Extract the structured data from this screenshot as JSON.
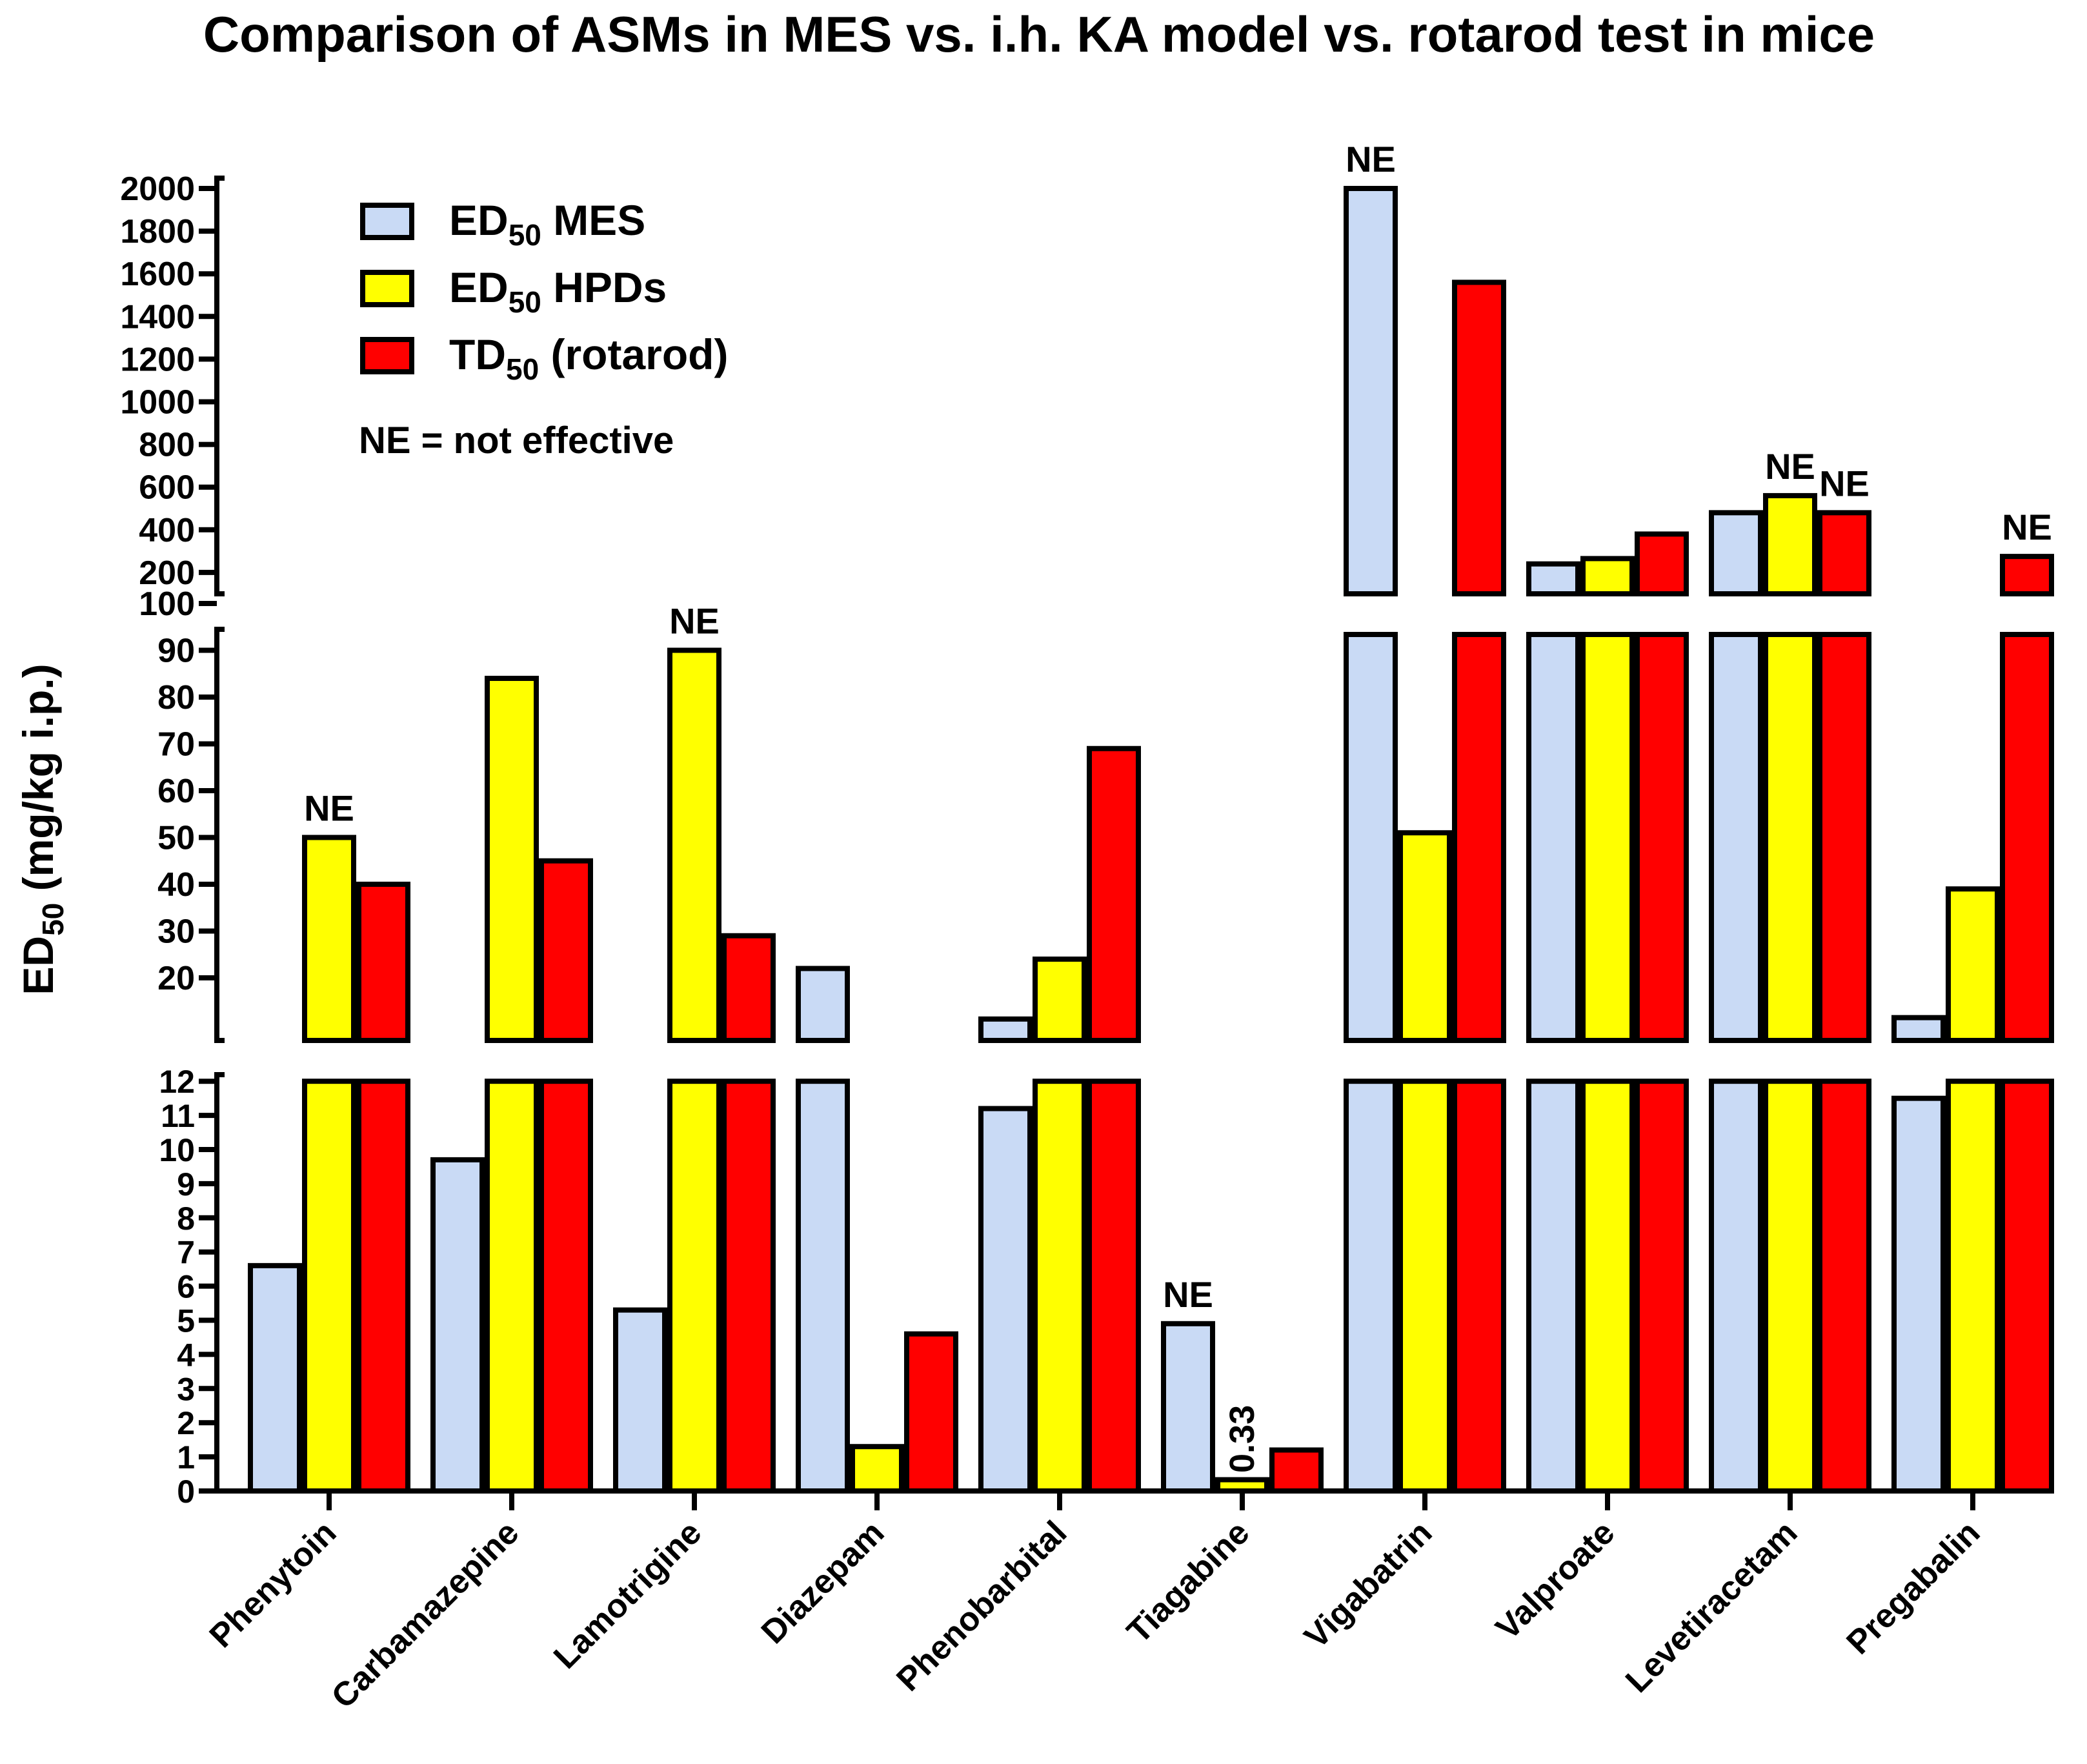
{
  "chart_data": {
    "type": "bar",
    "title": "Comparison of ASMs in MES vs. i.h. KA model vs. rotarod test in mice",
    "ylabel": {
      "base": "ED",
      "sub": "50",
      "rest": " (mg/kg i.p.)"
    },
    "categories": [
      "Phenytoin",
      "Carbamazepine",
      "Lamotrigine",
      "Diazepam",
      "Phenobarbital",
      "Tiagabine",
      "Vigabatrin",
      "Valproate",
      "Levetiracetam",
      "Pregabalin"
    ],
    "series": [
      {
        "name": "ED50 MES",
        "label": {
          "base": "ED",
          "sub": "50",
          "rest": " MES"
        },
        "color": "#c9daf5",
        "values": [
          6.6,
          9.7,
          5.3,
          22,
          11.2,
          4.9,
          2000,
          240,
          480,
          11.5
        ],
        "not_effective": [
          false,
          false,
          false,
          false,
          false,
          true,
          true,
          false,
          false,
          false
        ]
      },
      {
        "name": "ED50 HPDs",
        "label": {
          "base": "ED",
          "sub": "50",
          "rest": " HPDs"
        },
        "color": "#ffff00",
        "values": [
          50,
          84,
          90,
          1.3,
          24,
          0.33,
          51,
          265,
          560,
          39
        ],
        "not_effective": [
          true,
          false,
          true,
          false,
          false,
          false,
          false,
          false,
          true,
          false
        ]
      },
      {
        "name": "TD50 (rotarod)",
        "label": {
          "base": "TD",
          "sub": "50",
          "rest": " (rotarod)"
        },
        "color": "#ff0000",
        "values": [
          40,
          45,
          29,
          4.6,
          69,
          1.2,
          1560,
          380,
          480,
          275
        ],
        "not_effective": [
          false,
          false,
          false,
          false,
          false,
          false,
          false,
          false,
          true,
          true
        ]
      }
    ],
    "y_segments": [
      {
        "range": [
          0,
          12
        ],
        "ticks": [
          "0",
          "1",
          "2",
          "3",
          "4",
          "5",
          "6",
          "7",
          "8",
          "9",
          "10",
          "11",
          "12"
        ]
      },
      {
        "range": [
          10,
          100
        ],
        "ticks": [
          "20",
          "30",
          "40",
          "50",
          "60",
          "70",
          "80",
          "90",
          "100"
        ]
      },
      {
        "range": [
          100,
          2000
        ],
        "ticks": [
          "200",
          "400",
          "600",
          "800",
          "1000",
          "1200",
          "1400",
          "1600",
          "1800",
          "2000"
        ]
      }
    ],
    "annotations": {
      "ne": "NE",
      "tiagabine_hpd_value": "0.33"
    },
    "legend_note": "NE = not effective",
    "legend_position": "top-left",
    "grid": false
  }
}
